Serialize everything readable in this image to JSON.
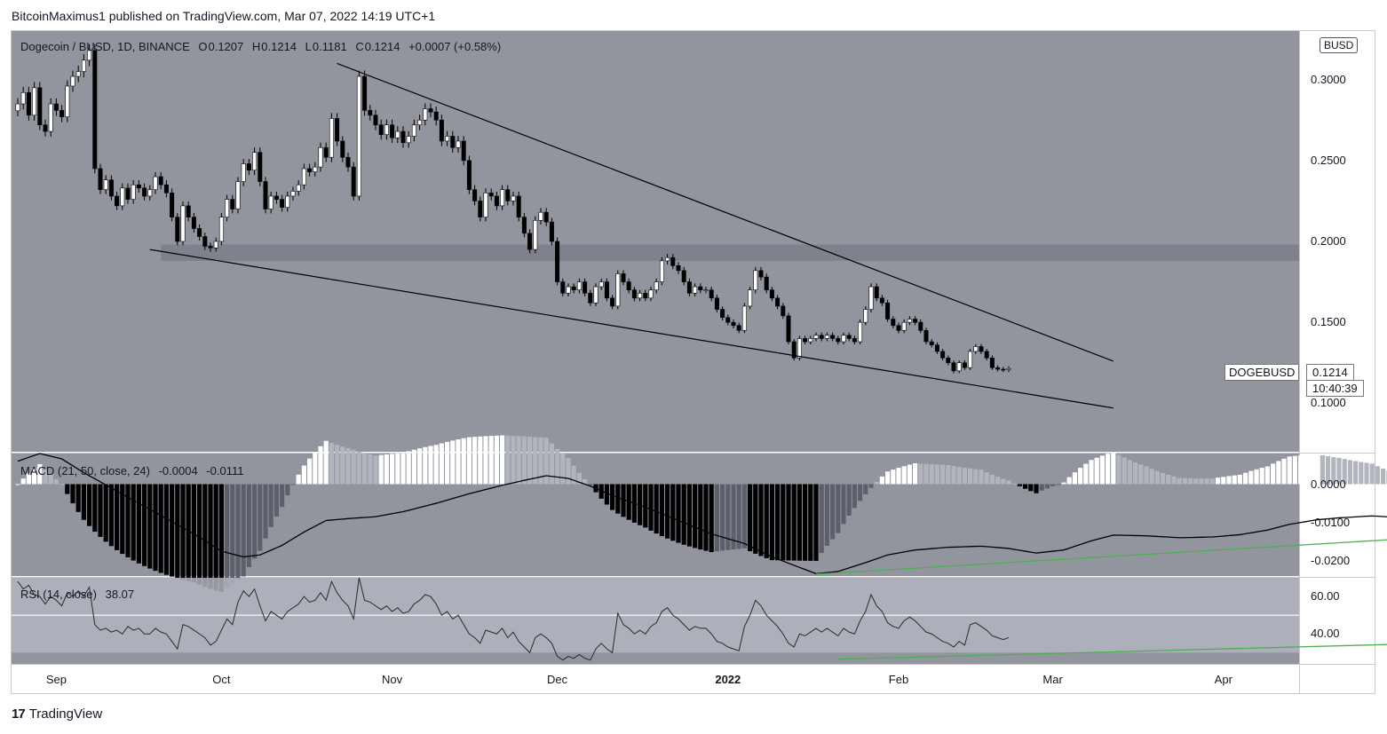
{
  "header": {
    "publisher_line": "BitcoinMaximus1 published on TradingView.com, Mar 07, 2022 14:19 UTC+1"
  },
  "footer": {
    "brand_logo": "17",
    "brand_name": "TradingView"
  },
  "main": {
    "symbol_title": "Dogecoin / BUSD, 1D, BINANCE",
    "ohlc": {
      "o_label": "O",
      "o": "0.1207",
      "h_label": "H",
      "h": "0.1214",
      "l_label": "L",
      "l": "0.1181",
      "c_label": "C",
      "c": "0.1214",
      "change": "+0.0007 (+0.58%)"
    },
    "currency_badge": "BUSD",
    "ticker_label": "DOGEBUSD",
    "last_price": "0.1214",
    "countdown": "10:40:39"
  },
  "macd": {
    "title": "MACD (21, 50, close, 24)",
    "hist_value": "-0.0004",
    "macd_value": "-0.0111"
  },
  "rsi": {
    "title": "RSI (14, close)",
    "value": "38.07"
  },
  "colors": {
    "pane_bg": "#92959e",
    "up_candle": "#ffffff",
    "down_candle": "#000000",
    "trendline": "#000000",
    "divergence": "#4caf50",
    "resistance_zone": "#787b86"
  },
  "chart_data": [
    {
      "type": "candlestick",
      "title": "Dogecoin / BUSD, 1D, BINANCE",
      "ylabel": "",
      "ylim": [
        0.07,
        0.33
      ],
      "y_ticks": [
        "0.3000",
        "0.2500",
        "0.2000",
        "0.1500",
        "0.1000"
      ],
      "x_ticks": [
        "Sep",
        "Oct",
        "Nov",
        "Dec",
        "2022",
        "Feb",
        "Mar",
        "Apr"
      ],
      "x_start_date": "2021-08-25",
      "close_series": [
        0.285,
        0.292,
        0.278,
        0.295,
        0.272,
        0.268,
        0.285,
        0.281,
        0.277,
        0.296,
        0.302,
        0.305,
        0.312,
        0.318,
        0.245,
        0.232,
        0.238,
        0.228,
        0.222,
        0.233,
        0.226,
        0.235,
        0.233,
        0.228,
        0.232,
        0.24,
        0.235,
        0.23,
        0.215,
        0.2,
        0.222,
        0.215,
        0.208,
        0.203,
        0.197,
        0.196,
        0.2,
        0.215,
        0.226,
        0.22,
        0.237,
        0.248,
        0.244,
        0.255,
        0.237,
        0.22,
        0.228,
        0.226,
        0.221,
        0.228,
        0.231,
        0.235,
        0.245,
        0.243,
        0.246,
        0.258,
        0.252,
        0.276,
        0.262,
        0.252,
        0.246,
        0.228,
        0.302,
        0.281,
        0.278,
        0.272,
        0.266,
        0.272,
        0.264,
        0.268,
        0.261,
        0.265,
        0.272,
        0.275,
        0.282,
        0.28,
        0.275,
        0.262,
        0.265,
        0.258,
        0.262,
        0.25,
        0.232,
        0.225,
        0.215,
        0.23,
        0.228,
        0.222,
        0.232,
        0.225,
        0.228,
        0.215,
        0.205,
        0.195,
        0.213,
        0.218,
        0.212,
        0.2,
        0.175,
        0.168,
        0.172,
        0.17,
        0.175,
        0.168,
        0.162,
        0.172,
        0.175,
        0.165,
        0.16,
        0.18,
        0.175,
        0.17,
        0.165,
        0.168,
        0.165,
        0.17,
        0.175,
        0.188,
        0.19,
        0.185,
        0.182,
        0.175,
        0.168,
        0.172,
        0.17,
        0.17,
        0.165,
        0.158,
        0.153,
        0.15,
        0.148,
        0.145,
        0.16,
        0.17,
        0.182,
        0.178,
        0.17,
        0.165,
        0.16,
        0.154,
        0.138,
        0.128,
        0.14,
        0.138,
        0.14,
        0.142,
        0.14,
        0.142,
        0.14,
        0.138,
        0.142,
        0.14,
        0.138,
        0.15,
        0.158,
        0.172,
        0.165,
        0.162,
        0.152,
        0.148,
        0.145,
        0.15,
        0.152,
        0.15,
        0.145,
        0.138,
        0.136,
        0.132,
        0.128,
        0.125,
        0.12,
        0.125,
        0.122,
        0.132,
        0.135,
        0.132,
        0.128,
        0.122,
        0.121,
        0.1207,
        0.1214
      ],
      "annotations": {
        "descending_resistance_line": {
          "from": [
            "2021-10-22",
            0.31
          ],
          "to": [
            "2022-03-12",
            0.126
          ]
        },
        "descending_support_line": {
          "from": [
            "2021-09-18",
            0.195
          ],
          "to": [
            "2022-03-12",
            0.097
          ]
        },
        "horizontal_zone": {
          "from": "2021-09-20",
          "y_low": 0.188,
          "y_high": 0.198
        }
      }
    },
    {
      "type": "macd",
      "title": "MACD (21, 50, close, 24)",
      "y_ticks": [
        "0.0000",
        "-0.0100",
        "-0.0200"
      ],
      "ylim": [
        -0.024,
        0.008
      ],
      "macd_line_anchors": [
        [
          0,
          0.006
        ],
        [
          4,
          0.008
        ],
        [
          8,
          0.0066
        ],
        [
          12,
          0.003
        ],
        [
          17,
          -0.001
        ],
        [
          22,
          -0.005
        ],
        [
          27,
          -0.009
        ],
        [
          32,
          -0.013
        ],
        [
          37,
          -0.0175
        ],
        [
          41,
          -0.019
        ],
        [
          44,
          -0.0185
        ],
        [
          48,
          -0.016
        ],
        [
          52,
          -0.0125
        ],
        [
          56,
          -0.0095
        ],
        [
          60,
          -0.009
        ],
        [
          65,
          -0.0085
        ],
        [
          70,
          -0.0072
        ],
        [
          76,
          -0.005
        ],
        [
          82,
          -0.0025
        ],
        [
          88,
          -0.0003
        ],
        [
          92,
          0.001
        ],
        [
          96,
          0.0022
        ],
        [
          100,
          0.0015
        ],
        [
          104,
          -0.0005
        ],
        [
          108,
          -0.003
        ],
        [
          114,
          -0.006
        ],
        [
          120,
          -0.0095
        ],
        [
          126,
          -0.013
        ],
        [
          132,
          -0.0155
        ],
        [
          137,
          -0.019
        ],
        [
          141,
          -0.0212
        ],
        [
          145,
          -0.0234
        ],
        [
          149,
          -0.0228
        ],
        [
          154,
          -0.0205
        ],
        [
          158,
          -0.0185
        ],
        [
          163,
          -0.0172
        ],
        [
          169,
          -0.0165
        ],
        [
          175,
          -0.0162
        ],
        [
          180,
          -0.0168
        ],
        [
          185,
          -0.018
        ],
        [
          190,
          -0.0172
        ],
        [
          195,
          -0.0148
        ],
        [
          199,
          -0.0133
        ],
        [
          205,
          -0.0135
        ],
        [
          211,
          -0.014
        ],
        [
          217,
          -0.0138
        ],
        [
          222,
          -0.0132
        ],
        [
          227,
          -0.012
        ],
        [
          231,
          -0.0105
        ],
        [
          236,
          -0.0093
        ],
        [
          240,
          -0.0088
        ],
        [
          246,
          -0.0083
        ],
        [
          252,
          -0.0088
        ],
        [
          258,
          -0.0095
        ],
        [
          263,
          -0.0105
        ],
        [
          267,
          -0.0103
        ],
        [
          272,
          -0.0106
        ],
        [
          276,
          -0.0111
        ]
      ],
      "divergence_line": {
        "from": [
          145,
          -0.0235
        ],
        "to": [
          276,
          -0.0122
        ]
      }
    },
    {
      "type": "rsi",
      "title": "RSI (14, close)",
      "y_ticks": [
        "60.00",
        "40.00"
      ],
      "ylim": [
        24,
        70
      ],
      "bands": {
        "upper": 70,
        "middle": 50,
        "lower": 30
      },
      "values": [
        68,
        64,
        66,
        61,
        60,
        56,
        60,
        58,
        55,
        62,
        60,
        63,
        60,
        65,
        45,
        42,
        43,
        41,
        42,
        40,
        44,
        42,
        43,
        40,
        40,
        43,
        41,
        40,
        36,
        32,
        45,
        44,
        42,
        40,
        38,
        34,
        36,
        42,
        48,
        45,
        57,
        63,
        60,
        64,
        55,
        47,
        52,
        50,
        48,
        52,
        54,
        56,
        60,
        57,
        58,
        62,
        58,
        68,
        62,
        58,
        55,
        48,
        70,
        58,
        57,
        55,
        53,
        55,
        52,
        54,
        51,
        52,
        56,
        58,
        61,
        60,
        56,
        50,
        52,
        48,
        50,
        45,
        40,
        38,
        35,
        42,
        41,
        40,
        43,
        38,
        41,
        36,
        33,
        30,
        38,
        40,
        38,
        35,
        28,
        26,
        28,
        27,
        29,
        27,
        26,
        32,
        35,
        32,
        30,
        51,
        45,
        43,
        40,
        42,
        40,
        44,
        46,
        52,
        54,
        50,
        48,
        45,
        42,
        44,
        43,
        43,
        40,
        36,
        35,
        33,
        32,
        31,
        44,
        50,
        58,
        55,
        50,
        47,
        44,
        40,
        35,
        33,
        40,
        39,
        41,
        43,
        41,
        43,
        41,
        39,
        43,
        41,
        40,
        47,
        52,
        61,
        55,
        52,
        46,
        44,
        43,
        47,
        49,
        47,
        44,
        41,
        40,
        38,
        36,
        35,
        33,
        36,
        34,
        45,
        46,
        44,
        42,
        39,
        38,
        37,
        38.07
      ],
      "divergence_line": {
        "from": [
          149,
          26.5
        ],
        "to": [
          276,
          36.5
        ]
      }
    }
  ]
}
